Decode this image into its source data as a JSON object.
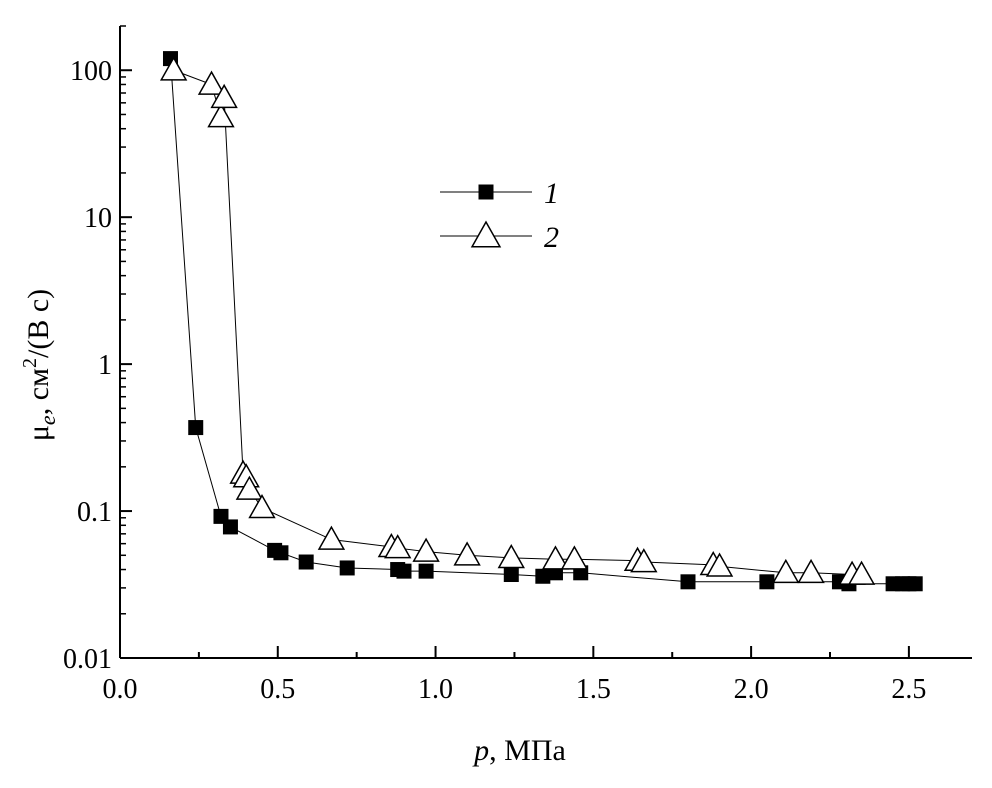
{
  "chart_data": {
    "type": "scatter",
    "x_scale": "linear",
    "y_scale": "log",
    "xlim": [
      0.0,
      2.7
    ],
    "ylim": [
      0.01,
      200
    ],
    "x_ticks": [
      0.0,
      0.5,
      1.0,
      1.5,
      2.0,
      2.5
    ],
    "x_tick_labels": [
      "0.0",
      "0.5",
      "1.0",
      "1.5",
      "2.0",
      "2.5"
    ],
    "y_ticks": [
      0.01,
      0.1,
      1,
      10,
      100
    ],
    "y_tick_labels": [
      "0.01",
      "0.1",
      "1",
      "10",
      "100"
    ],
    "xlabel": {
      "var": "p",
      "rest": ", МПа"
    },
    "ylabel": {
      "main": "μ",
      "sub": "e",
      "rest": ", см",
      "sup": "2",
      "tail": "/(В с)"
    },
    "grid": false,
    "legend_position": "upper-center",
    "series": [
      {
        "name": "1",
        "marker": "filled-square",
        "color": "#000000",
        "x": [
          0.16,
          0.24,
          0.32,
          0.35,
          0.49,
          0.51,
          0.59,
          0.72,
          0.88,
          0.9,
          0.97,
          1.24,
          1.34,
          1.38,
          1.46,
          1.8,
          2.05,
          2.28,
          2.31,
          2.45,
          2.48,
          2.5,
          2.52
        ],
        "y": [
          120,
          0.37,
          0.092,
          0.078,
          0.054,
          0.052,
          0.045,
          0.041,
          0.04,
          0.039,
          0.039,
          0.037,
          0.036,
          0.038,
          0.038,
          0.033,
          0.033,
          0.033,
          0.032,
          0.032,
          0.032,
          0.032,
          0.032
        ]
      },
      {
        "name": "2",
        "marker": "open-triangle",
        "color": "#000000",
        "x": [
          0.17,
          0.29,
          0.32,
          0.33,
          0.39,
          0.4,
          0.41,
          0.45,
          0.67,
          0.86,
          0.88,
          0.97,
          1.1,
          1.24,
          1.38,
          1.44,
          1.64,
          1.66,
          1.88,
          1.9,
          2.11,
          2.19,
          2.32,
          2.35
        ],
        "y": [
          100,
          80,
          48,
          65,
          0.18,
          0.17,
          0.14,
          0.105,
          0.064,
          0.057,
          0.056,
          0.053,
          0.05,
          0.048,
          0.047,
          0.047,
          0.046,
          0.045,
          0.043,
          0.042,
          0.038,
          0.038,
          0.037,
          0.037
        ]
      }
    ]
  }
}
